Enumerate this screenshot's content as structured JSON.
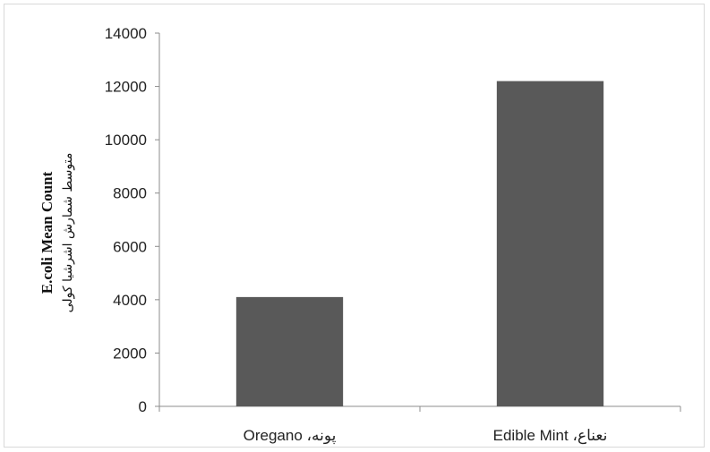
{
  "chart_data": {
    "type": "bar",
    "categories": [
      "Oregano ،پونه",
      "Edible Mint ،نعناع"
    ],
    "values": [
      4100,
      12200
    ],
    "title": "",
    "xlabel": "",
    "ylabel": "E.coli Mean Count",
    "ylabel_secondary": "متوسط شمارش اشرشیا کولی",
    "ylim": [
      0,
      14000
    ],
    "yticks": [
      0,
      2000,
      4000,
      6000,
      8000,
      10000,
      12000,
      14000
    ],
    "grid": false,
    "legend": "none",
    "bar_color": "#595959"
  }
}
